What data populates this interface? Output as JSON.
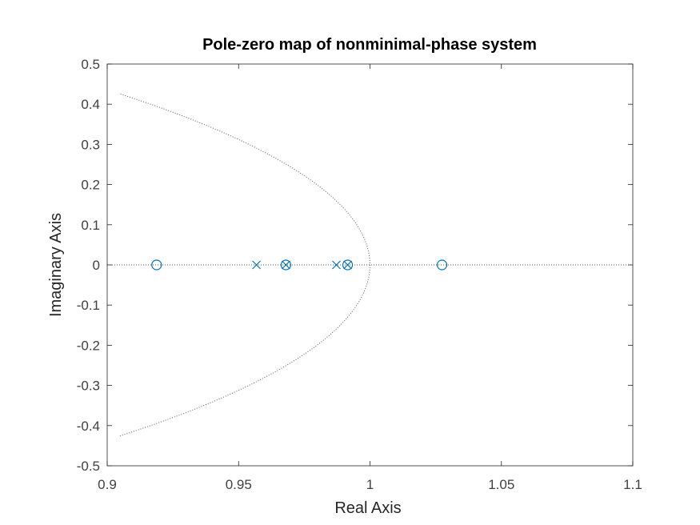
{
  "chart_data": {
    "type": "scatter",
    "title": "Pole-zero map of nonminimal-phase system",
    "xlabel": "Real Axis",
    "ylabel": "Imaginary Axis",
    "xlim": [
      0.9,
      1.1
    ],
    "ylim": [
      -0.5,
      0.5
    ],
    "xticks": [
      0.9,
      0.95,
      1.0,
      1.05,
      1.1
    ],
    "xtick_labels": [
      "0.9",
      "0.95",
      "1",
      "1.05",
      "1.1"
    ],
    "yticks": [
      0.5,
      0.4,
      0.3,
      0.2,
      0.1,
      0,
      -0.1,
      -0.2,
      -0.3,
      -0.4,
      -0.5
    ],
    "ytick_labels": [
      "0.5",
      "0.4",
      "0.3",
      "0.2",
      "0.1",
      "0",
      "-0.1",
      "-0.2",
      "-0.3",
      "-0.4",
      "-0.5"
    ],
    "grid": false,
    "marker_color": "#0072BD",
    "series": [
      {
        "marker": "x",
        "points": [
          [
            0.9568,
            0
          ],
          [
            0.968,
            0
          ],
          [
            0.9872,
            0
          ],
          [
            0.9915,
            0
          ]
        ]
      },
      {
        "marker": "o",
        "points": [
          [
            0.9188,
            0
          ],
          [
            0.968,
            0
          ],
          [
            0.9915,
            0
          ],
          [
            1.0274,
            0
          ]
        ]
      }
    ],
    "reference_lines": {
      "real_axis": true,
      "unit_circle": true,
      "style": "dotted",
      "color": "#555555"
    }
  }
}
